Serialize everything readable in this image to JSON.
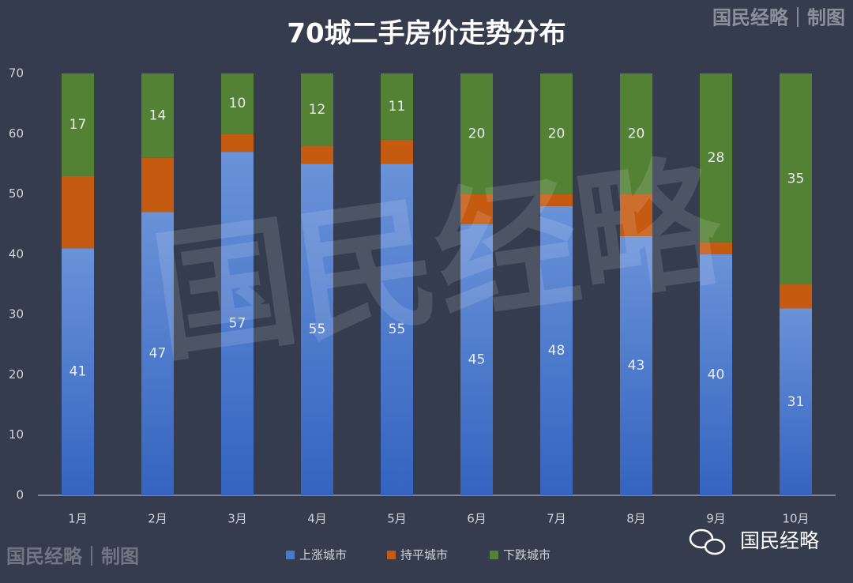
{
  "chart_data": {
    "type": "stacked_bar",
    "title": "70城二手房价走势分布",
    "categories": [
      "1月",
      "2月",
      "3月",
      "4月",
      "5月",
      "6月",
      "7月",
      "8月",
      "9月",
      "10月"
    ],
    "series": [
      {
        "name": "上涨城市",
        "color": "#4a78cc",
        "values": [
          41,
          47,
          57,
          55,
          55,
          45,
          48,
          43,
          40,
          31
        ],
        "labels": true
      },
      {
        "name": "持平城市",
        "color": "#c55a11",
        "values": [
          12,
          9,
          3,
          3,
          4,
          5,
          2,
          7,
          2,
          4
        ],
        "labels": false
      },
      {
        "name": "下跌城市",
        "color": "#548235",
        "values": [
          17,
          14,
          10,
          12,
          11,
          20,
          20,
          20,
          28,
          35
        ],
        "labels": true
      }
    ],
    "ylim": [
      0,
      70
    ],
    "yticks": [
      0,
      10,
      20,
      30,
      40,
      50,
      60,
      70
    ],
    "grid": false,
    "legend": "bottom"
  },
  "watermarks": {
    "top_right": "国民经略｜制图",
    "bottom_left": "国民经略｜制图",
    "bottom_right": "国民经略",
    "center": "国民经略"
  }
}
